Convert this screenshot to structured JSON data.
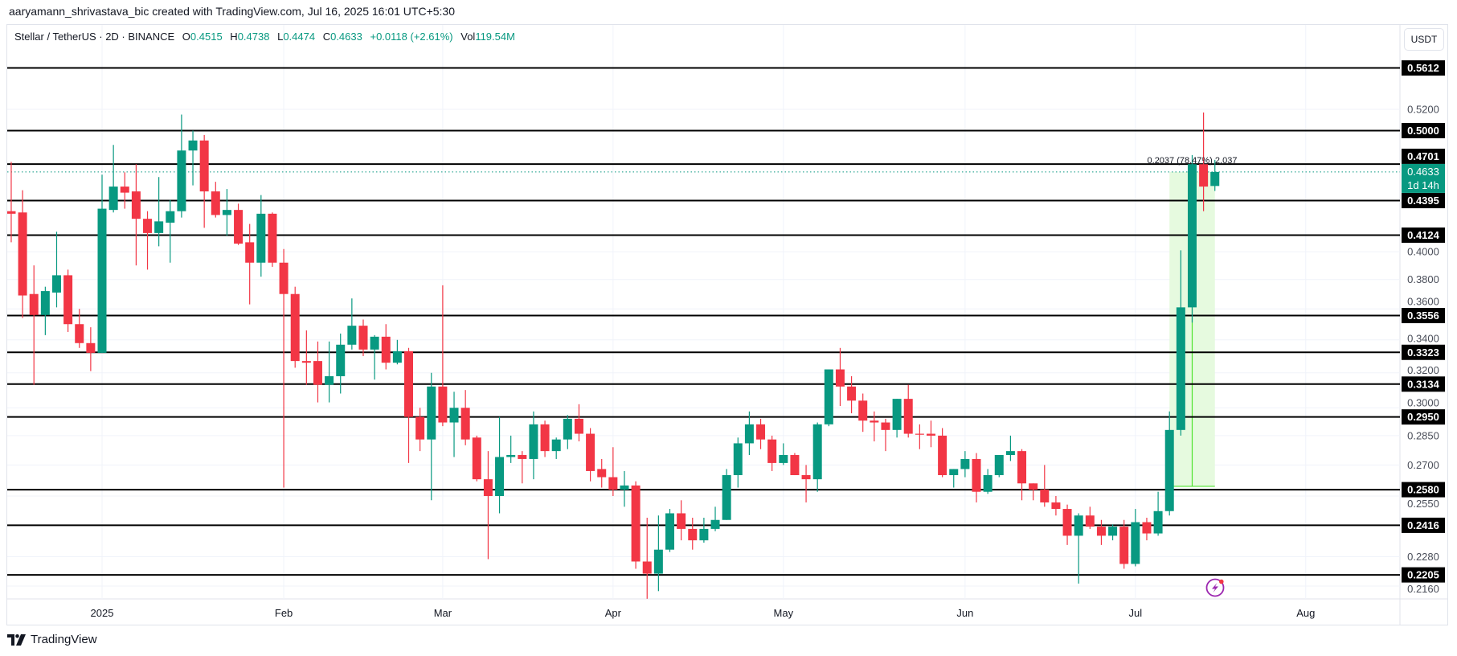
{
  "header": {
    "credit": "aaryamann_shrivastava_bic created with TradingView.com, Jul 16, 2025 16:01 UTC+5:30"
  },
  "legend": {
    "symbol": "Stellar / TetherUS · 2D · BINANCE",
    "o_label": "O",
    "open": "0.4515",
    "h_label": "H",
    "high": "0.4738",
    "l_label": "L",
    "low": "0.4474",
    "c_label": "C",
    "close": "0.4633",
    "change": "+0.0118 (+2.61%)",
    "vol_label": "Vol",
    "volume": "119.54M"
  },
  "currency_button": "USDT",
  "logo_text": "TradingView",
  "icons": {
    "alert": "lightning-bolt-icon",
    "logo": "tradingview-logo-icon"
  },
  "colors": {
    "up": "#089981",
    "down": "#f23645",
    "level_line": "#000000",
    "measure_fill": "#e3fadb",
    "measure_line": "#4ee32e",
    "alert_icon": "#9c27b0"
  },
  "chart_data": {
    "type": "candlestick",
    "title": "Stellar / TetherUS · 2D · BINANCE",
    "interval": "2D",
    "y_scale": "log",
    "ylim": [
      0.214,
      0.58
    ],
    "grid": true,
    "y_ticks": [
      "0.5200",
      "0.4000",
      "0.3800",
      "0.3600",
      "0.3400",
      "0.3200",
      "0.3000",
      "0.2850",
      "0.2700",
      "0.2550",
      "0.2280",
      "0.2160"
    ],
    "x_ticks": [
      {
        "label": "2025",
        "date": "2025-01-01"
      },
      {
        "label": "Feb",
        "date": "2025-02-02"
      },
      {
        "label": "Mar",
        "date": "2025-03-02"
      },
      {
        "label": "Apr",
        "date": "2025-04-01"
      },
      {
        "label": "May",
        "date": "2025-05-01"
      },
      {
        "label": "Jun",
        "date": "2025-06-02"
      },
      {
        "label": "Jul",
        "date": "2025-07-02"
      },
      {
        "label": "Aug",
        "date": "2025-08-01"
      }
    ],
    "levels": [
      "0.5612",
      "0.5000",
      "0.4701",
      "0.4395",
      "0.4124",
      "0.3556",
      "0.3323",
      "0.3134",
      "0.2950",
      "0.2580",
      "0.2416",
      "0.2205"
    ],
    "last_price": {
      "value": "0.4633",
      "countdown": "1d 14h"
    },
    "measure": {
      "from_date": "2025-07-08",
      "to_date": "2025-07-16",
      "from_price": 0.2596,
      "to_price": 0.4633,
      "label": "0.2037 (78.47%) 2,037"
    },
    "candle_columns": [
      "date",
      "open",
      "high",
      "low",
      "close"
    ],
    "candles": [
      [
        "2024-12-16",
        0.431,
        0.472,
        0.407,
        0.429
      ],
      [
        "2024-12-18",
        0.43,
        0.448,
        0.354,
        0.369
      ],
      [
        "2024-12-20",
        0.37,
        0.39,
        0.313,
        0.356
      ],
      [
        "2024-12-22",
        0.356,
        0.375,
        0.343,
        0.372
      ],
      [
        "2024-12-24",
        0.371,
        0.415,
        0.361,
        0.383
      ],
      [
        "2024-12-26",
        0.383,
        0.387,
        0.345,
        0.35
      ],
      [
        "2024-12-28",
        0.35,
        0.36,
        0.335,
        0.338
      ],
      [
        "2024-12-30",
        0.338,
        0.348,
        0.321,
        0.332
      ],
      [
        "2025-01-01",
        0.332,
        0.461,
        0.332,
        0.433
      ],
      [
        "2025-01-03",
        0.432,
        0.487,
        0.43,
        0.451
      ],
      [
        "2025-01-05",
        0.451,
        0.463,
        0.433,
        0.446
      ],
      [
        "2025-01-07",
        0.447,
        0.47,
        0.39,
        0.425
      ],
      [
        "2025-01-09",
        0.425,
        0.431,
        0.387,
        0.414
      ],
      [
        "2025-01-11",
        0.414,
        0.459,
        0.404,
        0.423
      ],
      [
        "2025-01-13",
        0.422,
        0.44,
        0.392,
        0.431
      ],
      [
        "2025-01-15",
        0.431,
        0.515,
        0.426,
        0.482
      ],
      [
        "2025-01-17",
        0.482,
        0.5,
        0.452,
        0.491
      ],
      [
        "2025-01-19",
        0.491,
        0.496,
        0.418,
        0.447
      ],
      [
        "2025-01-21",
        0.447,
        0.455,
        0.426,
        0.428
      ],
      [
        "2025-01-23",
        0.428,
        0.449,
        0.412,
        0.432
      ],
      [
        "2025-01-25",
        0.432,
        0.437,
        0.405,
        0.406
      ],
      [
        "2025-01-27",
        0.407,
        0.421,
        0.363,
        0.392
      ],
      [
        "2025-01-29",
        0.392,
        0.444,
        0.382,
        0.429
      ],
      [
        "2025-01-31",
        0.429,
        0.43,
        0.389,
        0.392
      ],
      [
        "2025-02-02",
        0.392,
        0.402,
        0.259,
        0.37
      ],
      [
        "2025-02-04",
        0.37,
        0.375,
        0.323,
        0.327
      ],
      [
        "2025-02-06",
        0.327,
        0.346,
        0.313,
        0.326
      ],
      [
        "2025-02-08",
        0.327,
        0.339,
        0.303,
        0.313
      ],
      [
        "2025-02-10",
        0.313,
        0.339,
        0.303,
        0.318
      ],
      [
        "2025-02-12",
        0.318,
        0.344,
        0.308,
        0.337
      ],
      [
        "2025-02-14",
        0.337,
        0.367,
        0.334,
        0.349
      ],
      [
        "2025-02-16",
        0.349,
        0.353,
        0.33,
        0.334
      ],
      [
        "2025-02-18",
        0.334,
        0.343,
        0.316,
        0.342
      ],
      [
        "2025-02-20",
        0.342,
        0.35,
        0.322,
        0.326
      ],
      [
        "2025-02-22",
        0.326,
        0.34,
        0.325,
        0.333
      ],
      [
        "2025-02-24",
        0.333,
        0.335,
        0.271,
        0.295
      ],
      [
        "2025-02-26",
        0.295,
        0.3,
        0.277,
        0.283
      ],
      [
        "2025-02-28",
        0.283,
        0.32,
        0.253,
        0.312
      ],
      [
        "2025-03-02",
        0.312,
        0.376,
        0.29,
        0.292
      ],
      [
        "2025-03-04",
        0.292,
        0.309,
        0.274,
        0.3
      ],
      [
        "2025-03-06",
        0.3,
        0.31,
        0.28,
        0.283
      ],
      [
        "2025-03-08",
        0.284,
        0.285,
        0.262,
        0.263
      ],
      [
        "2025-03-10",
        0.263,
        0.277,
        0.227,
        0.255
      ],
      [
        "2025-03-12",
        0.255,
        0.295,
        0.247,
        0.274
      ],
      [
        "2025-03-14",
        0.274,
        0.285,
        0.271,
        0.275
      ],
      [
        "2025-03-16",
        0.275,
        0.277,
        0.261,
        0.273
      ],
      [
        "2025-03-18",
        0.273,
        0.298,
        0.263,
        0.291
      ],
      [
        "2025-03-20",
        0.291,
        0.293,
        0.274,
        0.277
      ],
      [
        "2025-03-22",
        0.277,
        0.284,
        0.273,
        0.283
      ],
      [
        "2025-03-24",
        0.283,
        0.296,
        0.278,
        0.294
      ],
      [
        "2025-03-26",
        0.294,
        0.302,
        0.282,
        0.286
      ],
      [
        "2025-03-28",
        0.286,
        0.289,
        0.262,
        0.267
      ],
      [
        "2025-03-30",
        0.268,
        0.273,
        0.259,
        0.264
      ],
      [
        "2025-04-01",
        0.264,
        0.279,
        0.255,
        0.258
      ],
      [
        "2025-04-03",
        0.258,
        0.267,
        0.25,
        0.26
      ],
      [
        "2025-04-05",
        0.26,
        0.262,
        0.223,
        0.226
      ],
      [
        "2025-04-07",
        0.226,
        0.245,
        0.211,
        0.221
      ],
      [
        "2025-04-09",
        0.221,
        0.246,
        0.214,
        0.231
      ],
      [
        "2025-04-11",
        0.231,
        0.249,
        0.23,
        0.247
      ],
      [
        "2025-04-13",
        0.247,
        0.253,
        0.235,
        0.24
      ],
      [
        "2025-04-15",
        0.24,
        0.245,
        0.231,
        0.235
      ],
      [
        "2025-04-17",
        0.235,
        0.245,
        0.234,
        0.24
      ],
      [
        "2025-04-19",
        0.24,
        0.25,
        0.239,
        0.244
      ],
      [
        "2025-04-21",
        0.244,
        0.268,
        0.244,
        0.265
      ],
      [
        "2025-04-23",
        0.265,
        0.284,
        0.259,
        0.281
      ],
      [
        "2025-04-25",
        0.281,
        0.298,
        0.275,
        0.291
      ],
      [
        "2025-04-27",
        0.291,
        0.294,
        0.278,
        0.283
      ],
      [
        "2025-04-29",
        0.283,
        0.285,
        0.267,
        0.271
      ],
      [
        "2025-05-01",
        0.271,
        0.281,
        0.27,
        0.275
      ],
      [
        "2025-05-03",
        0.275,
        0.276,
        0.265,
        0.265
      ],
      [
        "2025-05-05",
        0.265,
        0.27,
        0.252,
        0.263
      ],
      [
        "2025-05-07",
        0.263,
        0.292,
        0.257,
        0.291
      ],
      [
        "2025-05-09",
        0.291,
        0.322,
        0.29,
        0.322
      ],
      [
        "2025-05-11",
        0.322,
        0.335,
        0.301,
        0.312
      ],
      [
        "2025-05-13",
        0.312,
        0.318,
        0.297,
        0.304
      ],
      [
        "2025-05-15",
        0.304,
        0.308,
        0.287,
        0.293
      ],
      [
        "2025-05-17",
        0.293,
        0.298,
        0.282,
        0.292
      ],
      [
        "2025-05-19",
        0.292,
        0.294,
        0.277,
        0.288
      ],
      [
        "2025-05-21",
        0.288,
        0.305,
        0.284,
        0.305
      ],
      [
        "2025-05-23",
        0.305,
        0.313,
        0.284,
        0.286
      ],
      [
        "2025-05-25",
        0.286,
        0.291,
        0.278,
        0.2855
      ],
      [
        "2025-05-27",
        0.286,
        0.293,
        0.279,
        0.285
      ],
      [
        "2025-05-29",
        0.285,
        0.289,
        0.264,
        0.265
      ],
      [
        "2025-05-31",
        0.265,
        0.268,
        0.259,
        0.268
      ],
      [
        "2025-06-02",
        0.268,
        0.277,
        0.264,
        0.273
      ],
      [
        "2025-06-04",
        0.273,
        0.276,
        0.252,
        0.257
      ],
      [
        "2025-06-06",
        0.257,
        0.268,
        0.256,
        0.265
      ],
      [
        "2025-06-08",
        0.265,
        0.275,
        0.264,
        0.275
      ],
      [
        "2025-06-10",
        0.275,
        0.285,
        0.272,
        0.277
      ],
      [
        "2025-06-12",
        0.277,
        0.278,
        0.253,
        0.261
      ],
      [
        "2025-06-14",
        0.261,
        0.261,
        0.253,
        0.258
      ],
      [
        "2025-06-16",
        0.258,
        0.27,
        0.25,
        0.252
      ],
      [
        "2025-06-18",
        0.252,
        0.255,
        0.246,
        0.249
      ],
      [
        "2025-06-20",
        0.249,
        0.251,
        0.233,
        0.237
      ],
      [
        "2025-06-22",
        0.237,
        0.247,
        0.217,
        0.246
      ],
      [
        "2025-06-24",
        0.246,
        0.25,
        0.24,
        0.241
      ],
      [
        "2025-06-26",
        0.241,
        0.244,
        0.233,
        0.237
      ],
      [
        "2025-06-28",
        0.237,
        0.242,
        0.235,
        0.241
      ],
      [
        "2025-06-30",
        0.241,
        0.244,
        0.223,
        0.225
      ],
      [
        "2025-07-02",
        0.225,
        0.249,
        0.224,
        0.243
      ],
      [
        "2025-07-04",
        0.243,
        0.245,
        0.235,
        0.238
      ],
      [
        "2025-07-06",
        0.238,
        0.257,
        0.237,
        0.248
      ],
      [
        "2025-07-08",
        0.248,
        0.298,
        0.246,
        0.288
      ],
      [
        "2025-07-10",
        0.288,
        0.401,
        0.285,
        0.361
      ],
      [
        "2025-07-12",
        0.361,
        0.478,
        0.351,
        0.47
      ],
      [
        "2025-07-14",
        0.47,
        0.517,
        0.431,
        0.451
      ],
      [
        "2025-07-16",
        0.4515,
        0.4738,
        0.4474,
        0.4633
      ]
    ]
  }
}
